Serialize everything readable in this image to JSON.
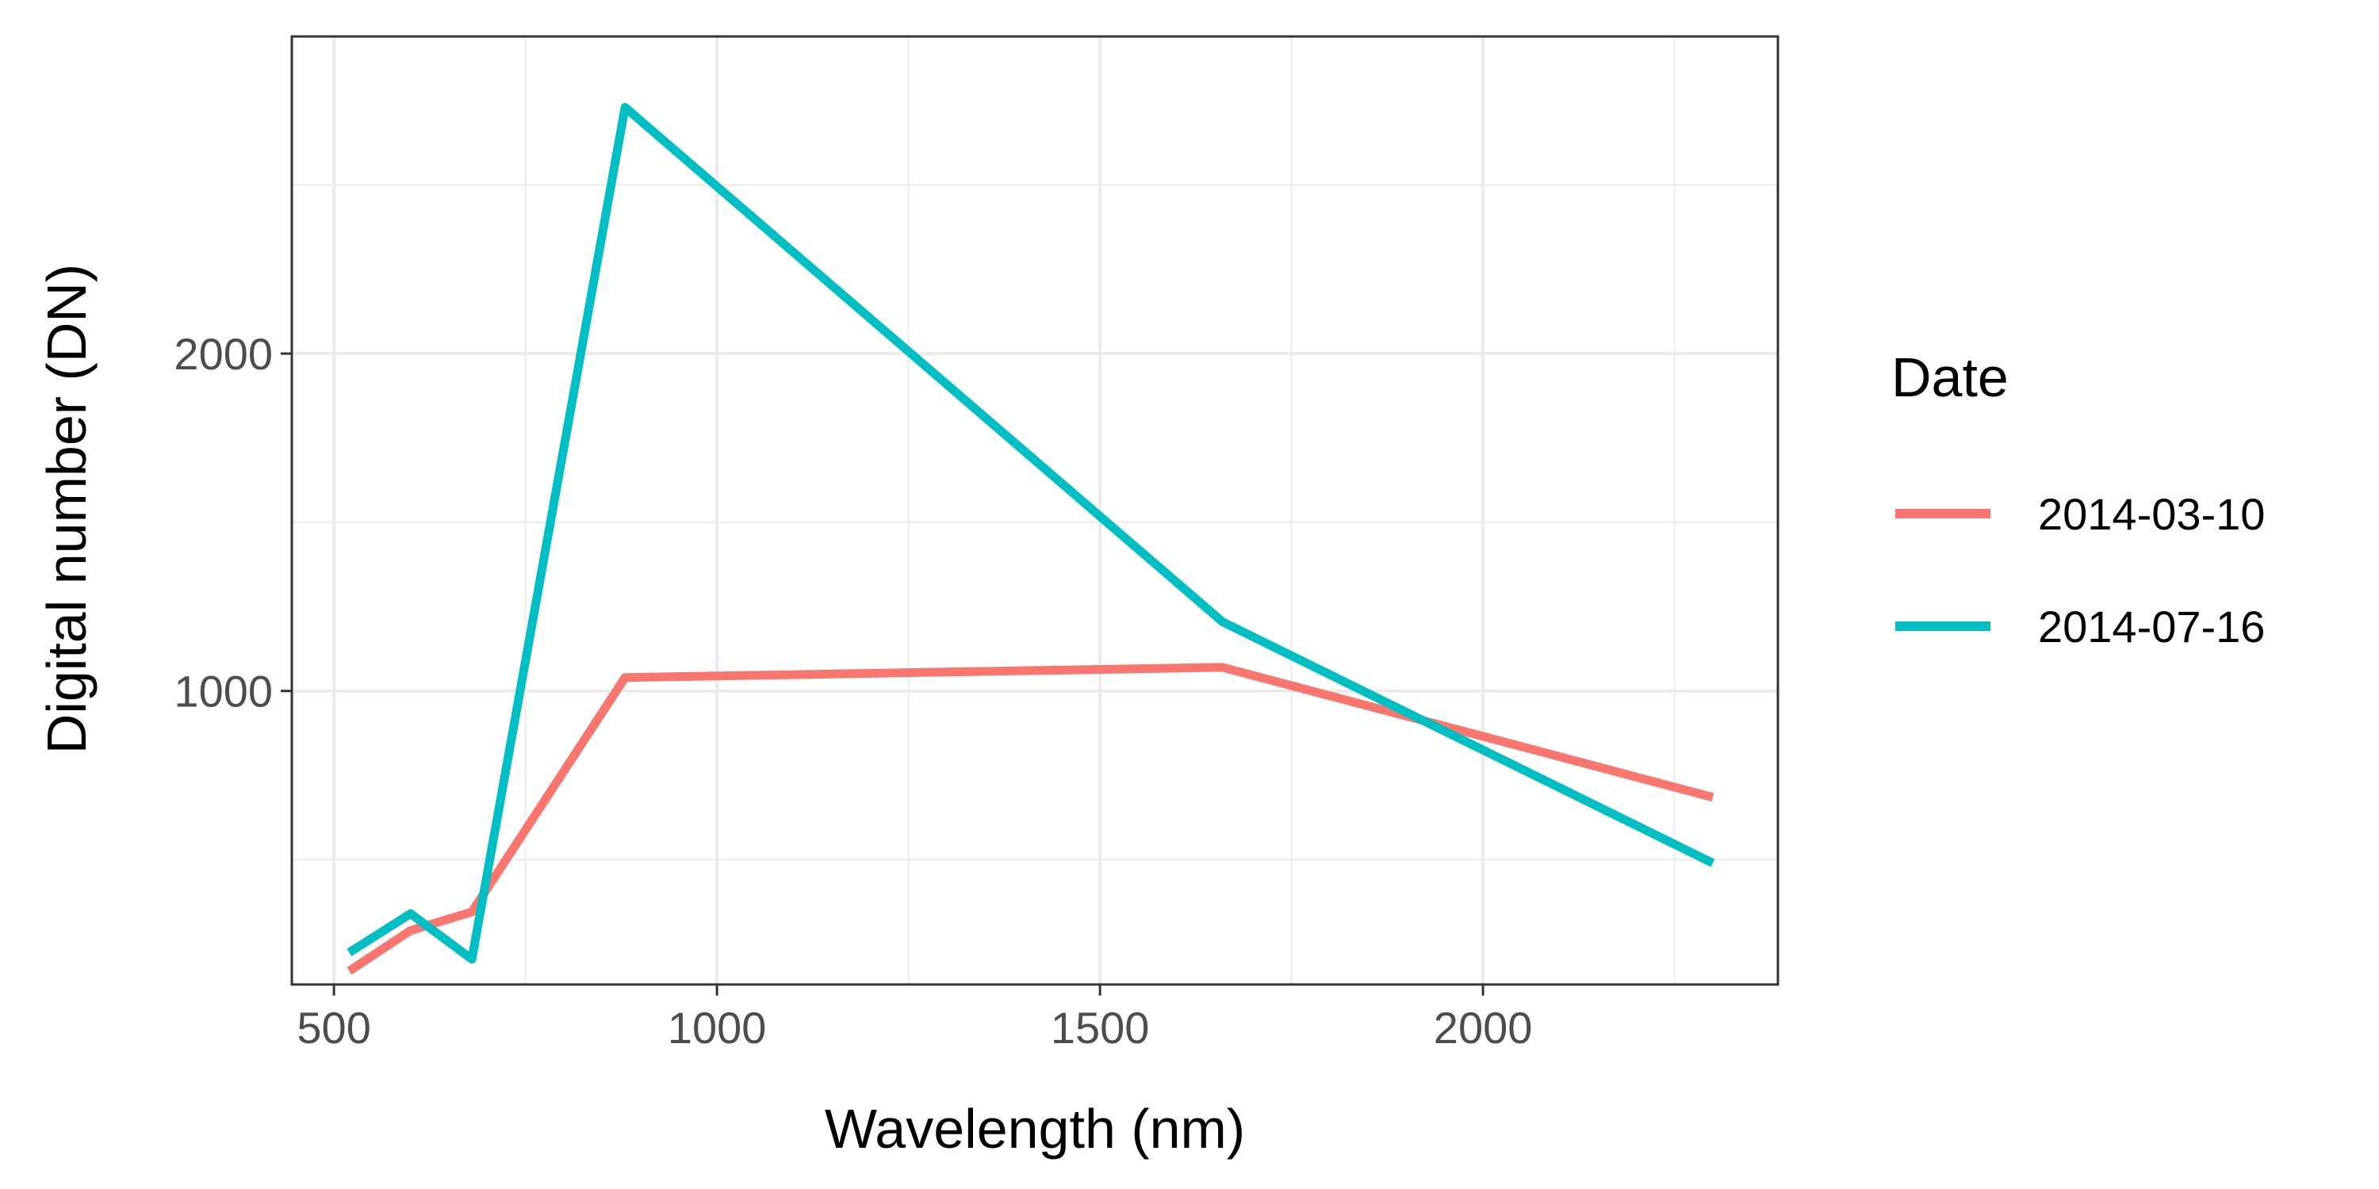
{
  "chart_data": {
    "type": "line",
    "title": "",
    "xlabel": "Wavelength (nm)",
    "ylabel": "Digital number (DN)",
    "xlim": [
      445,
      2385
    ],
    "ylim": [
      130,
      2940
    ],
    "x_ticks": [
      500,
      1000,
      1500,
      2000
    ],
    "x_minor_ticks": [
      750,
      1250,
      1750,
      2250
    ],
    "y_ticks": [
      1000,
      2000
    ],
    "y_minor_ticks": [
      500,
      1500,
      2500
    ],
    "grid": true,
    "legend": {
      "title": "Date",
      "position": "right"
    },
    "series": [
      {
        "name": "2014-03-10",
        "color": "#F8766D",
        "points": [
          {
            "x": 520,
            "y": 170
          },
          {
            "x": 600,
            "y": 290
          },
          {
            "x": 680,
            "y": 345
          },
          {
            "x": 880,
            "y": 1040
          },
          {
            "x": 1660,
            "y": 1070
          },
          {
            "x": 2300,
            "y": 685
          }
        ]
      },
      {
        "name": "2014-07-16",
        "color": "#00BFC4",
        "points": [
          {
            "x": 520,
            "y": 225
          },
          {
            "x": 600,
            "y": 340
          },
          {
            "x": 680,
            "y": 205
          },
          {
            "x": 880,
            "y": 2730
          },
          {
            "x": 1660,
            "y": 1205
          },
          {
            "x": 2300,
            "y": 490
          }
        ]
      }
    ]
  }
}
